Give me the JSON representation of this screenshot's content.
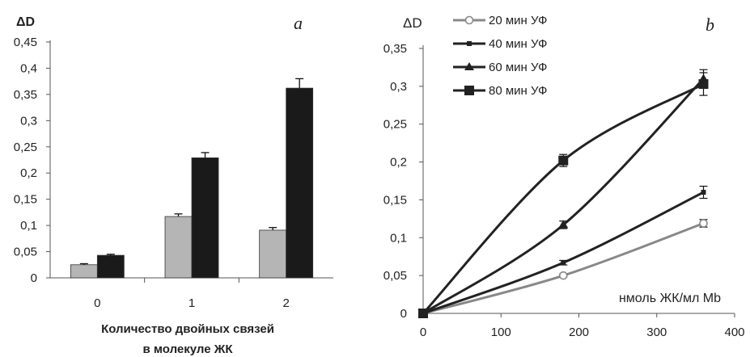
{
  "chart_data": [
    {
      "type": "bar",
      "panel_label": "a",
      "ylabel": "ΔD",
      "xlabel_lines": [
        "Количество двойных связей",
        "в  молекуле ЖК"
      ],
      "categories": [
        "0",
        "1",
        "2"
      ],
      "ylim": [
        0,
        0.45
      ],
      "yticks": [
        0,
        0.05,
        0.1,
        0.15,
        0.2,
        0.25,
        0.3,
        0.35,
        0.4,
        0.45
      ],
      "ytick_labels": [
        "0",
        "0,05",
        "0,1",
        "0,15",
        "0,2",
        "0,25",
        "0,3",
        "0,35",
        "0,4",
        "0,45"
      ],
      "series": [
        {
          "color": "#b5b5b5",
          "values": [
            0.025,
            0.117,
            0.091
          ],
          "errors": [
            0.002,
            0.005,
            0.005
          ]
        },
        {
          "color": "#1a1a1a",
          "values": [
            0.043,
            0.229,
            0.362
          ],
          "errors": [
            0.002,
            0.01,
            0.018
          ]
        }
      ]
    },
    {
      "type": "line",
      "panel_label": "b",
      "ylabel": "ΔD",
      "xlabel": "нмоль ЖК/мл Mb",
      "xlim": [
        0,
        400
      ],
      "xticks": [
        0,
        100,
        200,
        300,
        400
      ],
      "xtick_labels": [
        "0",
        "100",
        "200",
        "300",
        "400"
      ],
      "ylim": [
        0,
        0.35
      ],
      "yticks": [
        0,
        0.05,
        0.1,
        0.15,
        0.2,
        0.25,
        0.3,
        0.35
      ],
      "ytick_labels": [
        "0",
        "0,05",
        "0,1",
        "0,15",
        "0,2",
        "0,25",
        "0,3",
        "0,35"
      ],
      "legend_position": "top-left",
      "series": [
        {
          "name": "20 мин УФ",
          "color": "#888888",
          "marker": "circle-open",
          "x": [
            0,
            180,
            360
          ],
          "y": [
            0,
            0.05,
            0.119
          ],
          "err": [
            0,
            0.002,
            0.005
          ]
        },
        {
          "name": "40 мин УФ",
          "color": "#222222",
          "marker": "square-small",
          "x": [
            0,
            180,
            360
          ],
          "y": [
            0,
            0.067,
            0.16
          ],
          "err": [
            0,
            0.003,
            0.008
          ]
        },
        {
          "name": "60 мин УФ",
          "color": "#222222",
          "marker": "triangle",
          "x": [
            0,
            180,
            360
          ],
          "y": [
            0,
            0.117,
            0.31
          ],
          "err": [
            0,
            0.005,
            0.012
          ]
        },
        {
          "name": "80 мин УФ",
          "color": "#222222",
          "marker": "square",
          "x": [
            0,
            180,
            360
          ],
          "y": [
            0,
            0.202,
            0.303
          ],
          "err": [
            0,
            0.008,
            0.015
          ]
        }
      ]
    }
  ]
}
